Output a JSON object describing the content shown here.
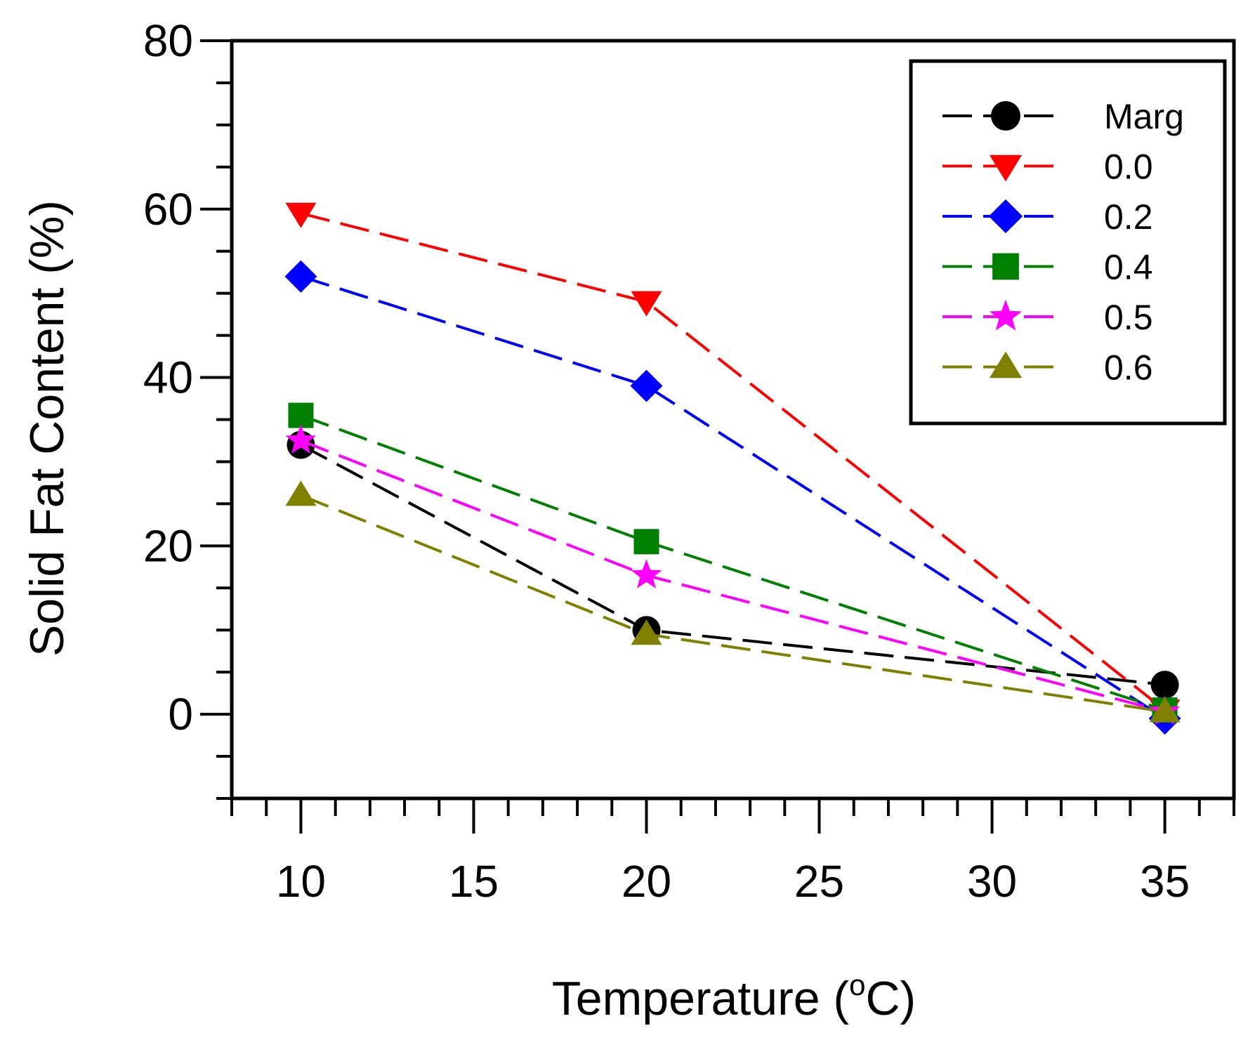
{
  "chart_data": {
    "type": "line",
    "x": [
      10,
      20,
      35
    ],
    "xlabel": "Temperature (",
    "xlabel_sup": "o",
    "xlabel_unit": "C)",
    "ylabel": "Solid Fat Content (%)",
    "xlim": [
      8,
      37
    ],
    "ylim": [
      -10,
      80
    ],
    "xticks": [
      10,
      15,
      20,
      25,
      30,
      35
    ],
    "yticks": [
      0,
      20,
      40,
      60,
      80
    ],
    "grid": false,
    "legend_position": "top-right",
    "series": [
      {
        "name": "Marg",
        "values": [
          32,
          10,
          3.5
        ],
        "color": "#000000",
        "marker": "circle"
      },
      {
        "name": "0.0",
        "values": [
          59.5,
          49,
          0.5
        ],
        "color": "#ff0000",
        "marker": "triangle-down"
      },
      {
        "name": "0.2",
        "values": [
          52,
          39,
          -0.5
        ],
        "color": "#0000ff",
        "marker": "diamond"
      },
      {
        "name": "0.4",
        "values": [
          35.5,
          20.5,
          0.5
        ],
        "color": "#008000",
        "marker": "square"
      },
      {
        "name": "0.5",
        "values": [
          32.5,
          16.5,
          0.3
        ],
        "color": "#ff00ff",
        "marker": "star"
      },
      {
        "name": "0.6",
        "values": [
          26,
          9.5,
          0.3
        ],
        "color": "#808000",
        "marker": "triangle-up"
      }
    ]
  }
}
